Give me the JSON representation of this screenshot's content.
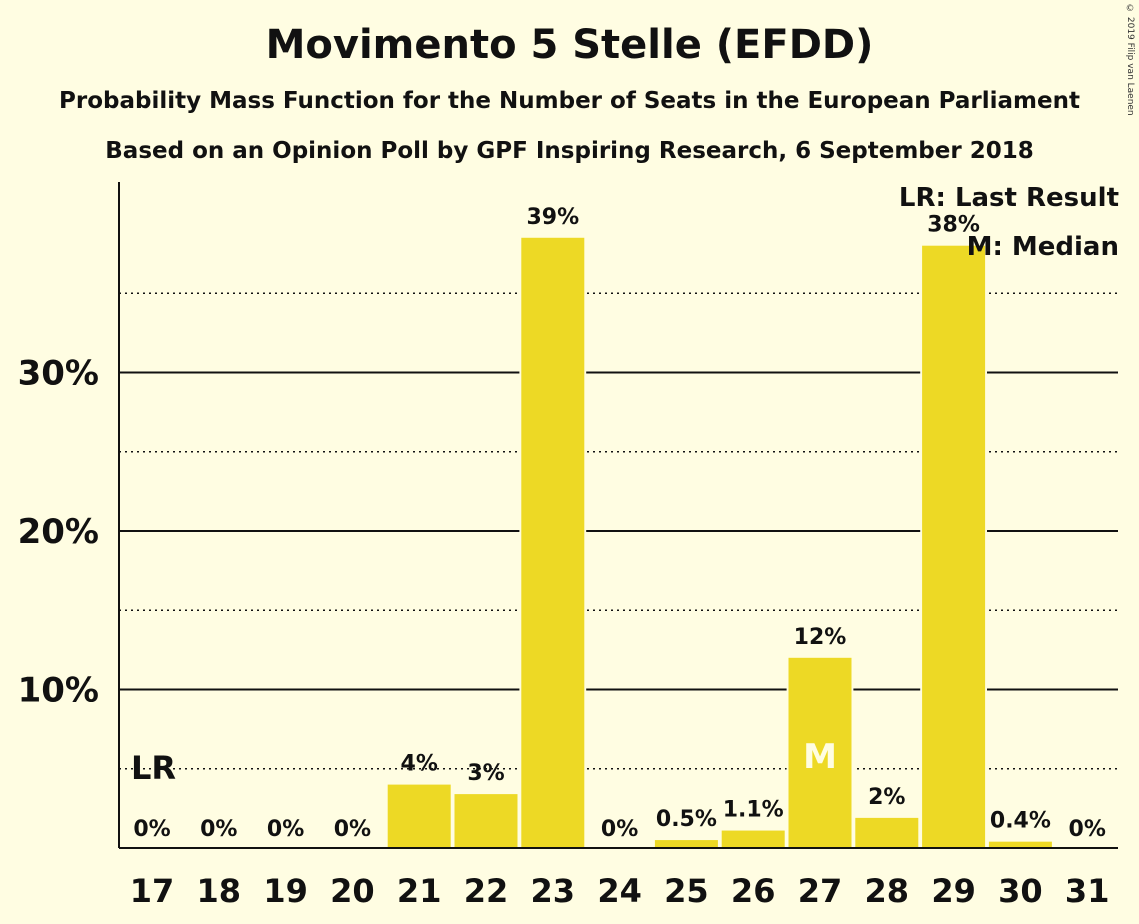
{
  "title": "Movimento 5 Stelle (EFDD)",
  "subtitle1": "Probability Mass Function for the Number of Seats in the European Parliament",
  "subtitle2": "Based on an Opinion Poll by GPF Inspiring Research, 6 September 2018",
  "copyright": "© 2019 Filip van Laenen",
  "legend": {
    "last_result": "LR: Last Result",
    "median": "M: Median"
  },
  "colors": {
    "bar": "#EDD925",
    "background": "#FFFDE2",
    "median_text": "#FFFDE2"
  },
  "chart_data": {
    "type": "bar",
    "title": "Movimento 5 Stelle (EFDD)",
    "categories": [
      "17",
      "18",
      "19",
      "20",
      "21",
      "22",
      "23",
      "24",
      "25",
      "26",
      "27",
      "28",
      "29",
      "30",
      "31"
    ],
    "values": [
      0,
      0,
      0,
      0,
      4,
      3.4,
      38.5,
      0,
      0.5,
      1.1,
      12,
      1.9,
      38,
      0.4,
      0
    ],
    "data_labels": [
      "0%",
      "0%",
      "0%",
      "0%",
      "4%",
      "3%",
      "39%",
      "0%",
      "0.5%",
      "1.1%",
      "12%",
      "2%",
      "38%",
      "0.4%",
      "0%"
    ],
    "ylim": [
      0,
      42
    ],
    "yticks": [
      {
        "value": 10,
        "label": "10%"
      },
      {
        "value": 20,
        "label": "20%"
      },
      {
        "value": 30,
        "label": "30%"
      }
    ],
    "dotted_gridlines": [
      5,
      15,
      25,
      35
    ],
    "last_result_seat": "17",
    "last_result_marker": "LR",
    "median_seat": "27",
    "median_marker": "M",
    "xlabel": "",
    "ylabel": ""
  }
}
